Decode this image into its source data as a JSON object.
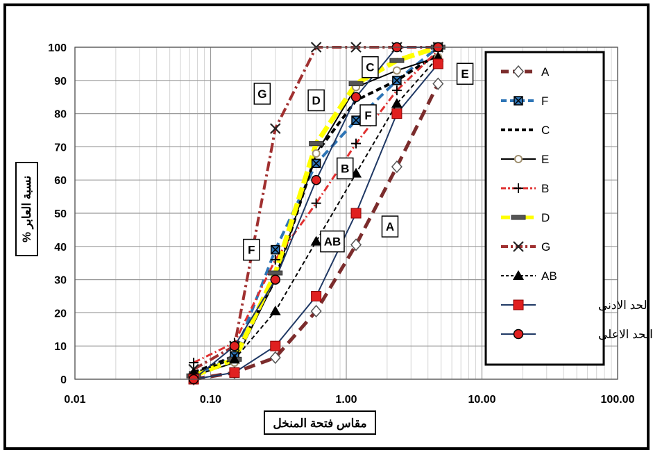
{
  "chart_data": {
    "type": "line",
    "xlabel": "مقاس فتحة المنخل",
    "ylabel": "نسبة العابر %",
    "xscale": "log",
    "xlim": [
      0.01,
      100
    ],
    "ylim": [
      0,
      100
    ],
    "x_ticks": [
      0.01,
      0.1,
      1,
      10,
      100
    ],
    "x_tick_labels": [
      "0.01",
      "0.10",
      "1.00",
      "10.00",
      "100.00"
    ],
    "y_ticks": [
      0,
      10,
      20,
      30,
      40,
      50,
      60,
      70,
      80,
      90,
      100
    ],
    "y_tick_labels": [
      "0",
      "10",
      "20",
      "30",
      "40",
      "50",
      "60",
      "70",
      "80",
      "90",
      "100"
    ],
    "grid": true,
    "legend_position": "right",
    "series": [
      {
        "name": "A",
        "color": "#7b2c2c",
        "dash": "16 9",
        "width": 5,
        "marker": "diamond",
        "points": [
          [
            0.075,
            0
          ],
          [
            0.15,
            2
          ],
          [
            0.3,
            6.5
          ],
          [
            0.6,
            20.5
          ],
          [
            1.18,
            40.5
          ],
          [
            2.36,
            64
          ],
          [
            4.75,
            89
          ]
        ]
      },
      {
        "name": "F",
        "color": "#2e75b6",
        "dash": "12 7",
        "width": 4,
        "marker": "boxx",
        "points": [
          [
            0.075,
            1
          ],
          [
            0.15,
            7
          ],
          [
            0.3,
            39
          ],
          [
            0.6,
            65
          ],
          [
            1.18,
            78
          ],
          [
            2.36,
            90
          ],
          [
            4.75,
            100
          ]
        ]
      },
      {
        "name": "C",
        "color": "#000000",
        "dash": "8 5",
        "width": 4,
        "marker": "none",
        "points": [
          [
            0.075,
            2
          ],
          [
            0.15,
            7
          ],
          [
            0.3,
            30
          ],
          [
            0.6,
            68
          ],
          [
            1.18,
            84
          ],
          [
            2.36,
            90
          ],
          [
            4.75,
            98
          ]
        ]
      },
      {
        "name": "E",
        "color": "#000000",
        "dash": "",
        "width": 2,
        "marker": "circle-open",
        "points": [
          [
            0.075,
            1
          ],
          [
            0.15,
            5
          ],
          [
            0.3,
            30
          ],
          [
            0.6,
            68
          ],
          [
            1.18,
            88
          ],
          [
            2.36,
            93
          ],
          [
            4.75,
            97
          ]
        ]
      },
      {
        "name": "B",
        "color": "#e03030",
        "dash": "10 4 2 4",
        "width": 3,
        "marker": "plus",
        "points": [
          [
            0.075,
            5
          ],
          [
            0.15,
            11
          ],
          [
            0.3,
            36
          ],
          [
            0.6,
            53
          ],
          [
            1.18,
            71
          ],
          [
            2.36,
            87
          ],
          [
            4.75,
            99
          ]
        ]
      },
      {
        "name": "D",
        "color": "#ffff00",
        "dash": "18 6",
        "width": 7,
        "marker": "dash",
        "points": [
          [
            0.075,
            1
          ],
          [
            0.15,
            6
          ],
          [
            0.3,
            32
          ],
          [
            0.6,
            71
          ],
          [
            1.18,
            89
          ],
          [
            2.36,
            96
          ],
          [
            4.75,
            100
          ]
        ]
      },
      {
        "name": "G",
        "color": "#a03030",
        "dash": "14 5 3 5",
        "width": 4,
        "marker": "x",
        "points": [
          [
            0.075,
            3
          ],
          [
            0.15,
            10
          ],
          [
            0.3,
            75.5
          ],
          [
            0.6,
            100
          ],
          [
            1.18,
            100
          ],
          [
            2.36,
            100
          ],
          [
            4.75,
            100
          ]
        ]
      },
      {
        "name": "AB",
        "color": "#000000",
        "dash": "6 4",
        "width": 2,
        "marker": "triangle",
        "points": [
          [
            0.075,
            2
          ],
          [
            0.15,
            6
          ],
          [
            0.3,
            20.5
          ],
          [
            0.6,
            41.5
          ],
          [
            1.18,
            62
          ],
          [
            2.36,
            83
          ],
          [
            4.75,
            97
          ]
        ]
      },
      {
        "name": "الحد الادنى",
        "color": "#1f3864",
        "dash": "",
        "width": 2,
        "marker": "square-red",
        "points": [
          [
            0.075,
            0
          ],
          [
            0.15,
            2
          ],
          [
            0.3,
            10
          ],
          [
            0.6,
            25
          ],
          [
            1.18,
            50
          ],
          [
            2.36,
            80
          ],
          [
            4.75,
            95
          ]
        ]
      },
      {
        "name": "الحد الاعلى",
        "color": "#1f3864",
        "dash": "",
        "width": 2,
        "marker": "circle-red",
        "points": [
          [
            0.075,
            0
          ],
          [
            0.15,
            10
          ],
          [
            0.3,
            30
          ],
          [
            0.6,
            60
          ],
          [
            1.18,
            85
          ],
          [
            2.36,
            100
          ],
          [
            4.75,
            100
          ]
        ]
      }
    ],
    "annotations": [
      {
        "text": "G",
        "x": 0.24,
        "y": 86
      },
      {
        "text": "D",
        "x": 0.6,
        "y": 84
      },
      {
        "text": "C",
        "x": 1.5,
        "y": 94
      },
      {
        "text": "E",
        "x": 7.5,
        "y": 92
      },
      {
        "text": "F",
        "x": 1.45,
        "y": 79.5
      },
      {
        "text": "B",
        "x": 0.98,
        "y": 63.5
      },
      {
        "text": "A",
        "x": 2.1,
        "y": 46
      },
      {
        "text": "AB",
        "x": 0.79,
        "y": 41.5
      },
      {
        "text": "F",
        "x": 0.2,
        "y": 39
      }
    ]
  }
}
